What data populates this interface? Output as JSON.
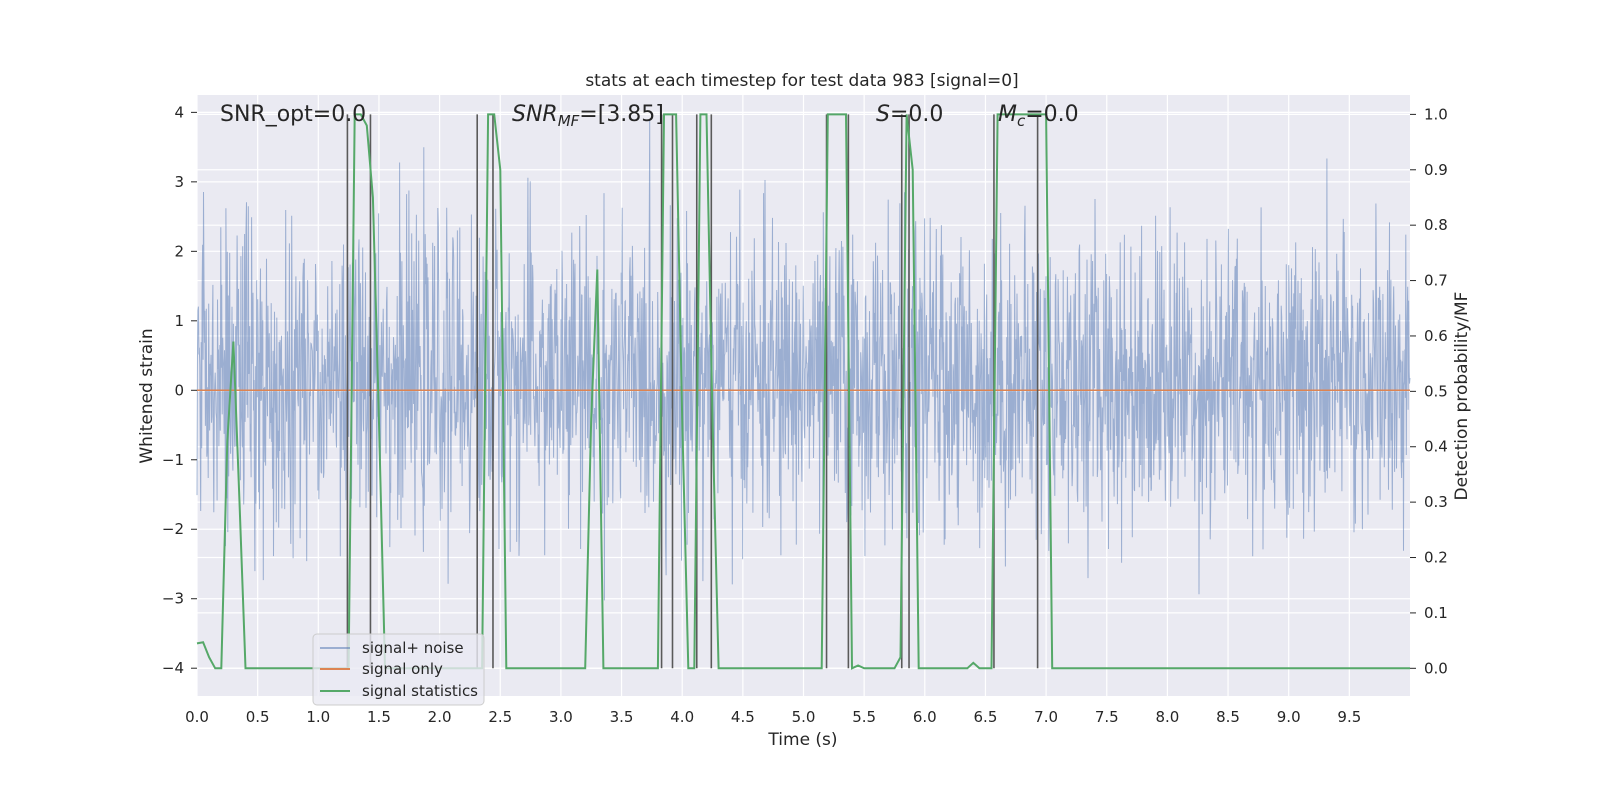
{
  "chart_data": {
    "type": "line",
    "title": "stats at each timestep for test data 983 [signal=0]",
    "xlabel": "Time (s)",
    "ylabel_left": "Whitened strain",
    "ylabel_right": "Detection probability/MF",
    "xlim": [
      0.0,
      10.0
    ],
    "ylim_left": [
      -4.4,
      4.25
    ],
    "ylim_right": [
      -0.05,
      1.035
    ],
    "x_ticks": [
      "0.0",
      "0.5",
      "1.0",
      "1.5",
      "2.0",
      "2.5",
      "3.0",
      "3.5",
      "4.0",
      "4.5",
      "5.0",
      "5.5",
      "6.0",
      "6.5",
      "7.0",
      "7.5",
      "8.0",
      "8.5",
      "9.0",
      "9.5"
    ],
    "y_left_ticks": [
      "−4",
      "−3",
      "−2",
      "−1",
      "0",
      "1",
      "2",
      "3",
      "4"
    ],
    "y_right_ticks": [
      "0.0",
      "0.1",
      "0.2",
      "0.3",
      "0.4",
      "0.5",
      "0.6",
      "0.7",
      "0.8",
      "0.9",
      "1.0"
    ],
    "grid": true,
    "background": "#eaeaf2",
    "legend_position": "lower-left",
    "annotations": [
      {
        "text": "SNR_opt=0.0",
        "x": 0.18
      },
      {
        "text": "SNR_MF=[3.85]",
        "x": 2.6,
        "math": true
      },
      {
        "text": "S=0.0",
        "x": 5.6,
        "math": true
      },
      {
        "text": "M_c=0.0",
        "x": 6.6,
        "math": true
      }
    ],
    "series": [
      {
        "name": "signal+ noise",
        "axis": "left",
        "color": "#4c72b0",
        "description_values": {
          "x_range": [
            0.0,
            10.0
          ],
          "amplitude_range": [
            -4.0,
            3.9
          ],
          "typical_band": [
            -1.7,
            2.3
          ]
        }
      },
      {
        "name": "signal only",
        "axis": "left",
        "color": "#dd8452",
        "x": [
          0.0,
          10.0
        ],
        "y": [
          0.0,
          0.0
        ]
      },
      {
        "name": "signal statistics",
        "axis": "right",
        "color": "#55a868",
        "x": [
          0.0,
          0.05,
          0.1,
          0.15,
          0.2,
          0.25,
          0.3,
          0.35,
          0.4,
          0.45,
          1.2,
          1.25,
          1.3,
          1.35,
          1.4,
          1.45,
          1.5,
          1.55,
          2.3,
          2.35,
          2.4,
          2.45,
          2.5,
          2.55,
          3.2,
          3.25,
          3.3,
          3.35,
          3.4,
          3.8,
          3.85,
          3.9,
          3.95,
          4.0,
          4.05,
          4.1,
          4.15,
          4.2,
          4.25,
          4.3,
          4.35,
          5.15,
          5.2,
          5.25,
          5.3,
          5.35,
          5.4,
          5.45,
          5.5,
          5.75,
          5.8,
          5.85,
          5.9,
          5.95,
          6.35,
          6.4,
          6.45,
          6.55,
          6.6,
          6.65,
          6.7,
          6.75,
          6.8,
          6.85,
          6.9,
          6.95,
          7.0,
          7.05,
          10.0
        ],
        "y": [
          0.045,
          0.047,
          0.02,
          0.0,
          0.0,
          0.41,
          0.59,
          0.3,
          0.0,
          0.0,
          0.0,
          0.0,
          1.0,
          1.0,
          0.98,
          0.85,
          0.45,
          0.0,
          0.0,
          0.0,
          1.0,
          1.0,
          0.9,
          0.0,
          0.0,
          0.45,
          0.72,
          0.0,
          0.0,
          0.0,
          1.0,
          1.0,
          1.0,
          0.45,
          0.0,
          0.0,
          1.0,
          1.0,
          0.45,
          0.0,
          0.0,
          0.0,
          1.0,
          1.0,
          1.0,
          1.0,
          0.0,
          0.005,
          0.0,
          0.0,
          0.02,
          1.0,
          0.9,
          0.0,
          0.0,
          0.01,
          0.0,
          0.0,
          1.0,
          1.0,
          1.0,
          1.0,
          1.0,
          1.0,
          1.0,
          1.0,
          1.0,
          0.0,
          0.0
        ]
      }
    ],
    "vertical_lines_x": [
      1.24,
      1.43,
      2.31,
      2.44,
      3.83,
      3.92,
      4.12,
      4.24,
      5.19,
      5.37,
      5.81,
      5.87,
      6.57,
      6.93
    ]
  }
}
